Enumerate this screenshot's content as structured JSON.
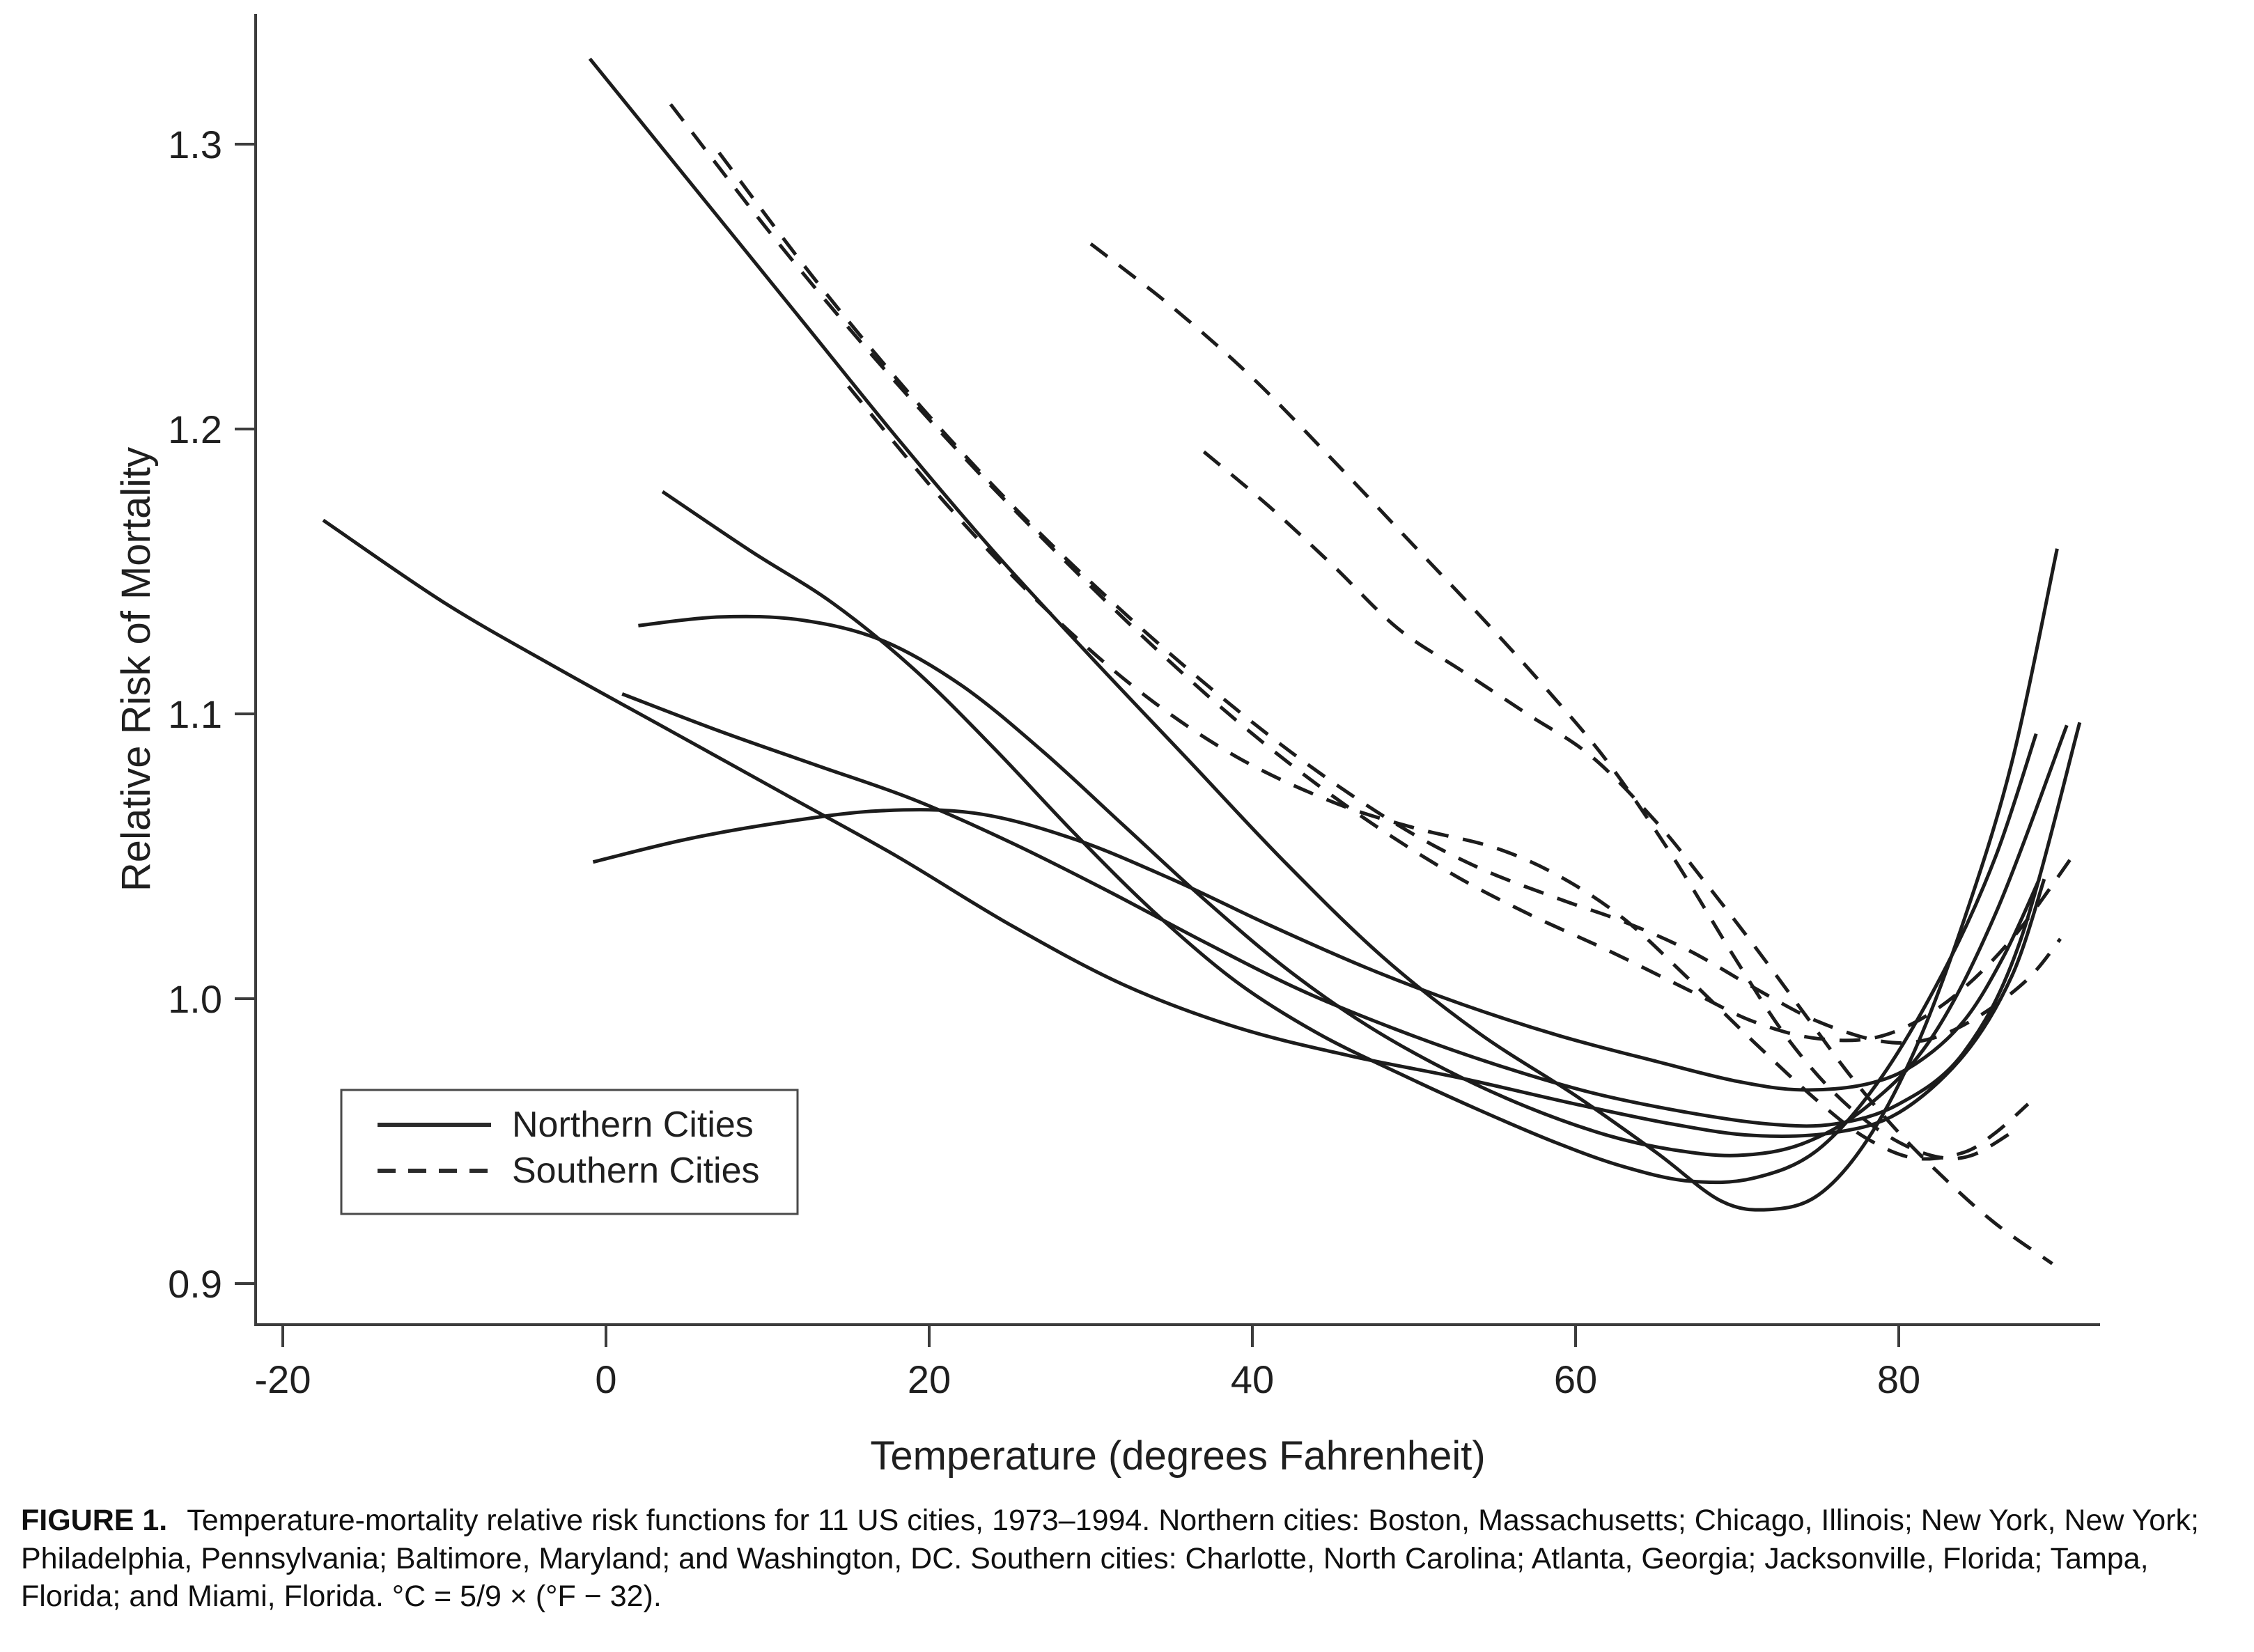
{
  "figure": {
    "y_axis": {
      "label": "Relative Risk of Mortality",
      "tick_labels": [
        "0.9",
        "1.0",
        "1.1",
        "1.2",
        "1.3"
      ],
      "tick_values": [
        0.9,
        1.0,
        1.1,
        1.2,
        1.3
      ]
    },
    "x_axis": {
      "label": "Temperature (degrees Fahrenheit)",
      "tick_labels": [
        "-20",
        "0",
        "20",
        "40",
        "60",
        "80"
      ],
      "tick_values": [
        -20,
        0,
        20,
        40,
        60,
        80
      ]
    },
    "legend": {
      "items": [
        {
          "label": "Northern Cities",
          "style": "solid"
        },
        {
          "label": "Southern Cities",
          "style": "dashed"
        }
      ]
    },
    "caption": {
      "label": "FIGURE 1.",
      "text": "Temperature-mortality relative risk functions for 11 US cities, 1973–1994. Northern cities: Boston, Massachusetts; Chicago, Illinois; New York, New York; Philadelphia, Pennsylvania; Baltimore, Maryland; and Washington, DC. Southern cities: Charlotte, North Carolina; Atlanta, Georgia; Jacksonville, Florida; Tampa, Florida; and Miami, Florida. °C = 5/9 × (°F − 32)."
    }
  },
  "chart_data": {
    "type": "line",
    "title": "",
    "xlabel": "Temperature (degrees Fahrenheit)",
    "ylabel": "Relative Risk of Mortality",
    "xlim": [
      -25,
      93
    ],
    "ylim": [
      0.885,
      1.345
    ],
    "x_ticks": [
      -20,
      0,
      20,
      40,
      60,
      80
    ],
    "y_ticks": [
      0.9,
      1.0,
      1.1,
      1.2,
      1.3
    ],
    "grid": false,
    "legend_position": "lower-left",
    "series": [
      {
        "name": "northern-city-1",
        "group": "Northern Cities",
        "style": "solid",
        "points": [
          [
            -1,
            1.33
          ],
          [
            6,
            1.281
          ],
          [
            12,
            1.239
          ],
          [
            18,
            1.197
          ],
          [
            24,
            1.157
          ],
          [
            30,
            1.12
          ],
          [
            36,
            1.084
          ],
          [
            42,
            1.048
          ],
          [
            48,
            1.015
          ],
          [
            54,
            0.988
          ],
          [
            60,
            0.966
          ],
          [
            65,
            0.946
          ],
          [
            69,
            0.929
          ],
          [
            72,
            0.926
          ],
          [
            75,
            0.931
          ],
          [
            78,
            0.95
          ],
          [
            81,
            0.982
          ],
          [
            84,
            1.027
          ],
          [
            87,
            1.083
          ],
          [
            89.8,
            1.158
          ]
        ]
      },
      {
        "name": "northern-city-2",
        "group": "Northern Cities",
        "style": "solid",
        "points": [
          [
            -17.5,
            1.168
          ],
          [
            -10,
            1.139
          ],
          [
            -3,
            1.116
          ],
          [
            4,
            1.094
          ],
          [
            11,
            1.072
          ],
          [
            18,
            1.05
          ],
          [
            25,
            1.026
          ],
          [
            32,
            1.005
          ],
          [
            39,
            0.99
          ],
          [
            46,
            0.98
          ],
          [
            53,
            0.972
          ],
          [
            60,
            0.963
          ],
          [
            66,
            0.956
          ],
          [
            71,
            0.952
          ],
          [
            76,
            0.953
          ],
          [
            80,
            0.96
          ],
          [
            84,
            0.98
          ],
          [
            87,
            1.008
          ],
          [
            89,
            1.042
          ]
        ]
      },
      {
        "name": "northern-city-3",
        "group": "Northern Cities",
        "style": "solid",
        "points": [
          [
            3.5,
            1.178
          ],
          [
            9,
            1.157
          ],
          [
            14,
            1.139
          ],
          [
            19,
            1.116
          ],
          [
            24,
            1.088
          ],
          [
            29,
            1.058
          ],
          [
            34,
            1.03
          ],
          [
            39,
            1.006
          ],
          [
            44,
            0.988
          ],
          [
            49,
            0.974
          ],
          [
            54,
            0.961
          ],
          [
            59,
            0.949
          ],
          [
            63,
            0.941
          ],
          [
            67,
            0.936
          ],
          [
            71,
            0.937
          ],
          [
            75,
            0.947
          ],
          [
            79,
            0.973
          ],
          [
            83,
            1.012
          ],
          [
            86,
            1.05
          ],
          [
            88.5,
            1.093
          ]
        ]
      },
      {
        "name": "northern-city-4",
        "group": "Northern Cities",
        "style": "solid",
        "points": [
          [
            2,
            1.131
          ],
          [
            7,
            1.134
          ],
          [
            12,
            1.133
          ],
          [
            17,
            1.126
          ],
          [
            22,
            1.11
          ],
          [
            27,
            1.087
          ],
          [
            32,
            1.061
          ],
          [
            37,
            1.035
          ],
          [
            42,
            1.011
          ],
          [
            47,
            0.991
          ],
          [
            52,
            0.975
          ],
          [
            57,
            0.962
          ],
          [
            62,
            0.952
          ],
          [
            66,
            0.947
          ],
          [
            70,
            0.945
          ],
          [
            74,
            0.949
          ],
          [
            78,
            0.962
          ],
          [
            82,
            0.986
          ],
          [
            86,
            1.03
          ],
          [
            90.4,
            1.096
          ]
        ]
      },
      {
        "name": "northern-city-5",
        "group": "Northern Cities",
        "style": "solid",
        "points": [
          [
            1,
            1.107
          ],
          [
            7,
            1.094
          ],
          [
            13,
            1.082
          ],
          [
            19,
            1.07
          ],
          [
            25,
            1.055
          ],
          [
            31,
            1.038
          ],
          [
            37,
            1.02
          ],
          [
            43,
            1.003
          ],
          [
            49,
            0.989
          ],
          [
            55,
            0.977
          ],
          [
            61,
            0.967
          ],
          [
            67,
            0.96
          ],
          [
            72,
            0.956
          ],
          [
            76,
            0.956
          ],
          [
            80,
            0.963
          ],
          [
            84,
            0.981
          ],
          [
            87.5,
            1.02
          ],
          [
            91.2,
            1.097
          ]
        ]
      },
      {
        "name": "northern-city-6",
        "group": "Northern Cities",
        "style": "solid",
        "points": [
          [
            -0.8,
            1.048
          ],
          [
            5,
            1.056
          ],
          [
            11,
            1.062
          ],
          [
            17,
            1.066
          ],
          [
            23,
            1.065
          ],
          [
            29,
            1.056
          ],
          [
            35,
            1.042
          ],
          [
            41,
            1.026
          ],
          [
            47,
            1.011
          ],
          [
            53,
            0.998
          ],
          [
            59,
            0.987
          ],
          [
            65,
            0.978
          ],
          [
            70,
            0.971
          ],
          [
            74,
            0.968
          ],
          [
            78,
            0.97
          ],
          [
            81,
            0.977
          ],
          [
            84,
            0.992
          ],
          [
            86.5,
            1.015
          ],
          [
            88.7,
            1.042
          ]
        ]
      },
      {
        "name": "southern-city-1",
        "group": "Southern Cities",
        "style": "dashed",
        "points": [
          [
            4,
            1.314
          ],
          [
            10,
            1.27
          ],
          [
            16,
            1.229
          ],
          [
            22,
            1.191
          ],
          [
            28,
            1.156
          ],
          [
            34,
            1.123
          ],
          [
            40,
            1.093
          ],
          [
            46,
            1.067
          ],
          [
            52,
            1.045
          ],
          [
            57,
            1.03
          ],
          [
            62,
            1.017
          ],
          [
            67,
            1.003
          ],
          [
            71,
            0.992
          ],
          [
            75,
            0.986
          ],
          [
            79,
            0.987
          ],
          [
            83,
            0.999
          ],
          [
            87,
            1.021
          ],
          [
            91,
            1.052
          ]
        ]
      },
      {
        "name": "southern-city-2",
        "group": "Southern Cities",
        "style": "dashed",
        "points": [
          [
            7,
            1.297
          ],
          [
            13,
            1.252
          ],
          [
            19,
            1.211
          ],
          [
            25,
            1.174
          ],
          [
            31,
            1.141
          ],
          [
            37,
            1.111
          ],
          [
            43,
            1.084
          ],
          [
            49,
            1.061
          ],
          [
            54,
            1.046
          ],
          [
            59,
            1.035
          ],
          [
            63,
            1.027
          ],
          [
            67,
            1.017
          ],
          [
            71,
            1.004
          ],
          [
            75,
            0.992
          ],
          [
            79,
            0.985
          ],
          [
            82,
            0.986
          ],
          [
            85,
            0.994
          ],
          [
            88,
            1.007
          ],
          [
            90,
            1.021
          ]
        ]
      },
      {
        "name": "southern-city-3",
        "group": "Southern Cities",
        "style": "dashed",
        "points": [
          [
            15,
            1.215
          ],
          [
            21,
            1.174
          ],
          [
            27,
            1.138
          ],
          [
            33,
            1.108
          ],
          [
            39,
            1.085
          ],
          [
            45,
            1.069
          ],
          [
            50,
            1.06
          ],
          [
            55,
            1.053
          ],
          [
            59,
            1.043
          ],
          [
            63,
            1.028
          ],
          [
            67,
            1.007
          ],
          [
            71,
            0.985
          ],
          [
            75,
            0.964
          ],
          [
            78,
            0.951
          ],
          [
            81,
            0.944
          ],
          [
            84,
            0.946
          ],
          [
            86,
            0.953
          ],
          [
            88,
            0.963
          ]
        ]
      },
      {
        "name": "southern-city-4",
        "group": "Southern Cities",
        "style": "dashed",
        "points": [
          [
            30,
            1.265
          ],
          [
            35,
            1.243
          ],
          [
            40,
            1.218
          ],
          [
            45,
            1.189
          ],
          [
            50,
            1.159
          ],
          [
            54,
            1.135
          ],
          [
            58,
            1.11
          ],
          [
            62,
            1.083
          ],
          [
            66,
            1.05
          ],
          [
            70,
            1.013
          ],
          [
            73,
            0.987
          ],
          [
            76,
            0.967
          ],
          [
            79,
            0.953
          ],
          [
            82,
            0.945
          ],
          [
            84.5,
            0.945
          ],
          [
            87.5,
            0.955
          ]
        ]
      },
      {
        "name": "southern-city-5",
        "group": "Southern Cities",
        "style": "dashed",
        "points": [
          [
            37,
            1.192
          ],
          [
            41,
            1.173
          ],
          [
            45,
            1.152
          ],
          [
            49,
            1.13
          ],
          [
            53,
            1.115
          ],
          [
            57,
            1.1
          ],
          [
            61,
            1.085
          ],
          [
            65,
            1.062
          ],
          [
            68,
            1.041
          ],
          [
            71,
            1.019
          ],
          [
            74,
            0.996
          ],
          [
            77,
            0.973
          ],
          [
            80,
            0.953
          ],
          [
            83,
            0.936
          ],
          [
            86,
            0.921
          ],
          [
            89.5,
            0.907
          ]
        ]
      }
    ]
  }
}
